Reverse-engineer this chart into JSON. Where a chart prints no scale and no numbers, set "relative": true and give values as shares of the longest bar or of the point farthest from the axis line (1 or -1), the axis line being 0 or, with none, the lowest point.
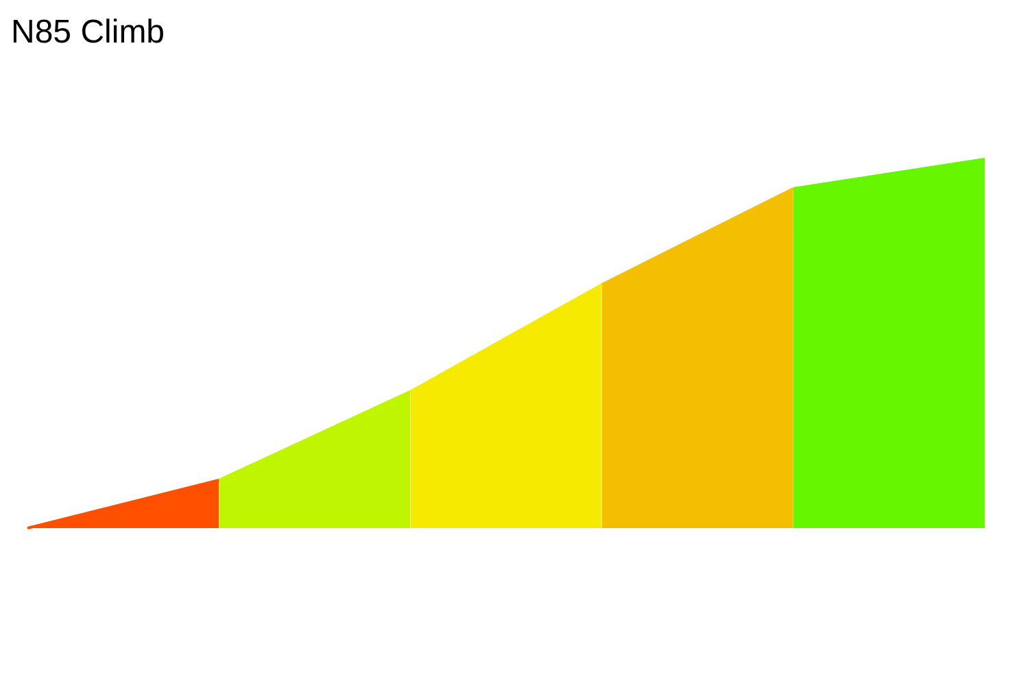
{
  "chart_data": {
    "type": "area",
    "title": "N85 Climb",
    "relative": true,
    "marker": "none",
    "categories": [
      null,
      null,
      null,
      null,
      null,
      null
    ],
    "series": [
      {
        "color": "#ff5000",
        "values": [
          0,
          0.13,
          null,
          null,
          null,
          null
        ]
      },
      {
        "color": "#c0f500",
        "values": [
          null,
          0.13,
          0.37,
          null,
          null,
          null
        ]
      },
      {
        "color": "#f5ea00",
        "values": [
          null,
          null,
          0.37,
          0.66,
          null,
          null
        ]
      },
      {
        "color": "#f4bf00",
        "values": [
          null,
          null,
          null,
          0.66,
          0.92,
          null
        ]
      },
      {
        "color": "#66f600",
        "values": [
          null,
          null,
          null,
          null,
          0.92,
          1
        ]
      }
    ]
  }
}
